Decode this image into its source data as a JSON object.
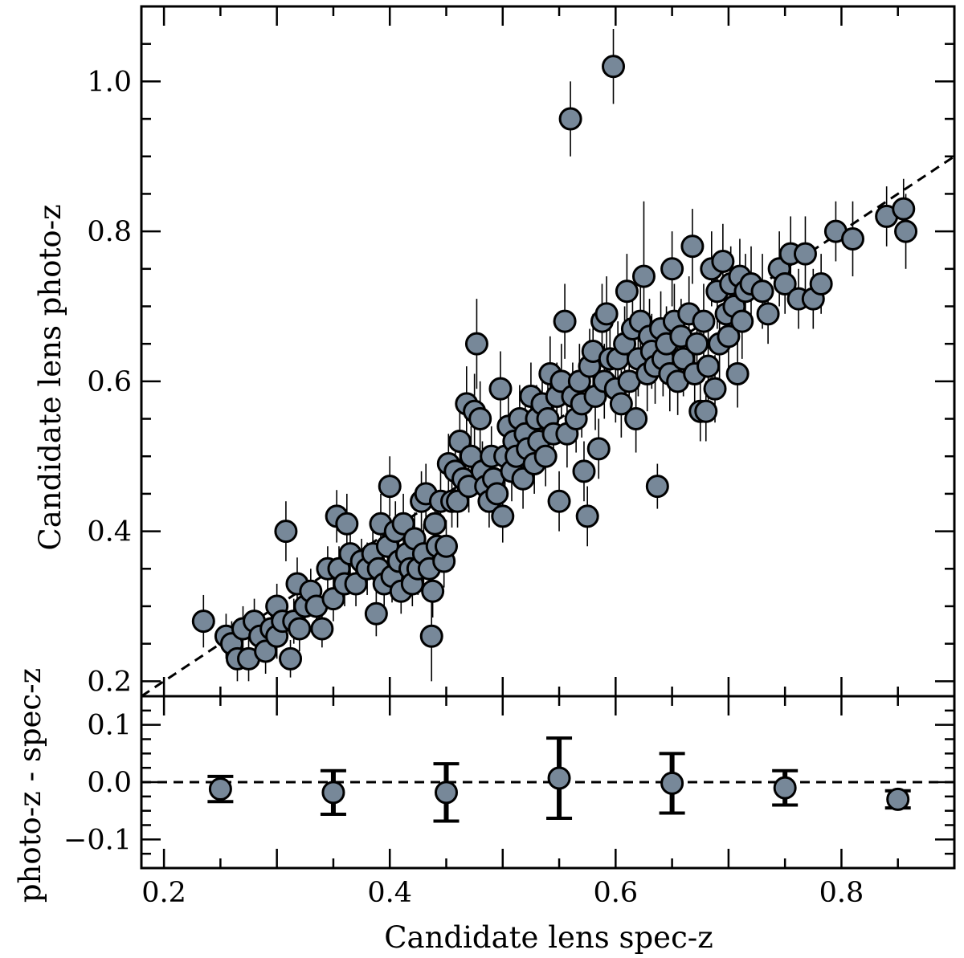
{
  "chart_data": [
    {
      "type": "scatter",
      "title": "",
      "xlabel": "",
      "ylabel": "Candidate lens photo-z",
      "xlim": [
        0.18,
        0.9
      ],
      "ylim": [
        0.18,
        1.1
      ],
      "xticks": [
        "0.2",
        "0.4",
        "0.6",
        "0.8"
      ],
      "yticks": [
        "0.2",
        "0.4",
        "0.6",
        "0.8",
        "1.0"
      ],
      "grid": false,
      "legend": "none",
      "marker_color": "#778899",
      "reference_line": {
        "style": "dashed",
        "x": [
          0.18,
          0.9
        ],
        "y": [
          0.18,
          0.9
        ]
      },
      "series": [
        {
          "points": [
            [
              0.235,
              0.28,
              0.035
            ],
            [
              0.255,
              0.26,
              0.03
            ],
            [
              0.26,
              0.25,
              0.03
            ],
            [
              0.265,
              0.23,
              0.03
            ],
            [
              0.27,
              0.27,
              0.03
            ],
            [
              0.275,
              0.23,
              0.03
            ],
            [
              0.28,
              0.28,
              0.03
            ],
            [
              0.285,
              0.26,
              0.025
            ],
            [
              0.29,
              0.24,
              0.03
            ],
            [
              0.295,
              0.27,
              0.03
            ],
            [
              0.3,
              0.3,
              0.03
            ],
            [
              0.3,
              0.26,
              0.03
            ],
            [
              0.305,
              0.28,
              0.03
            ],
            [
              0.308,
              0.4,
              0.04
            ],
            [
              0.312,
              0.23,
              0.025
            ],
            [
              0.315,
              0.28,
              0.03
            ],
            [
              0.318,
              0.33,
              0.035
            ],
            [
              0.32,
              0.27,
              0.03
            ],
            [
              0.325,
              0.3,
              0.035
            ],
            [
              0.33,
              0.32,
              0.03
            ],
            [
              0.335,
              0.3,
              0.03
            ],
            [
              0.34,
              0.27,
              0.025
            ],
            [
              0.345,
              0.35,
              0.03
            ],
            [
              0.35,
              0.31,
              0.03
            ],
            [
              0.353,
              0.42,
              0.035
            ],
            [
              0.355,
              0.35,
              0.03
            ],
            [
              0.36,
              0.33,
              0.03
            ],
            [
              0.362,
              0.41,
              0.04
            ],
            [
              0.365,
              0.37,
              0.035
            ],
            [
              0.37,
              0.33,
              0.03
            ],
            [
              0.375,
              0.36,
              0.03
            ],
            [
              0.38,
              0.35,
              0.035
            ],
            [
              0.385,
              0.37,
              0.035
            ],
            [
              0.388,
              0.29,
              0.03
            ],
            [
              0.39,
              0.35,
              0.03
            ],
            [
              0.392,
              0.41,
              0.04
            ],
            [
              0.395,
              0.33,
              0.035
            ],
            [
              0.398,
              0.38,
              0.04
            ],
            [
              0.4,
              0.46,
              0.04
            ],
            [
              0.402,
              0.34,
              0.035
            ],
            [
              0.405,
              0.4,
              0.04
            ],
            [
              0.408,
              0.36,
              0.035
            ],
            [
              0.41,
              0.32,
              0.03
            ],
            [
              0.412,
              0.41,
              0.04
            ],
            [
              0.415,
              0.37,
              0.035
            ],
            [
              0.418,
              0.35,
              0.03
            ],
            [
              0.42,
              0.33,
              0.03
            ],
            [
              0.422,
              0.39,
              0.035
            ],
            [
              0.425,
              0.35,
              0.035
            ],
            [
              0.428,
              0.44,
              0.04
            ],
            [
              0.43,
              0.37,
              0.04
            ],
            [
              0.432,
              0.45,
              0.04
            ],
            [
              0.435,
              0.35,
              0.04
            ],
            [
              0.437,
              0.26,
              0.06
            ],
            [
              0.438,
              0.32,
              0.035
            ],
            [
              0.44,
              0.41,
              0.04
            ],
            [
              0.442,
              0.38,
              0.035
            ],
            [
              0.445,
              0.44,
              0.04
            ],
            [
              0.448,
              0.36,
              0.035
            ],
            [
              0.45,
              0.38,
              0.035
            ],
            [
              0.452,
              0.49,
              0.04
            ],
            [
              0.455,
              0.44,
              0.035
            ],
            [
              0.458,
              0.48,
              0.04
            ],
            [
              0.46,
              0.44,
              0.035
            ],
            [
              0.462,
              0.52,
              0.04
            ],
            [
              0.465,
              0.47,
              0.04
            ],
            [
              0.468,
              0.57,
              0.05
            ],
            [
              0.47,
              0.46,
              0.035
            ],
            [
              0.472,
              0.5,
              0.04
            ],
            [
              0.475,
              0.56,
              0.05
            ],
            [
              0.477,
              0.65,
              0.06
            ],
            [
              0.48,
              0.55,
              0.05
            ],
            [
              0.482,
              0.48,
              0.04
            ],
            [
              0.485,
              0.46,
              0.035
            ],
            [
              0.488,
              0.44,
              0.035
            ],
            [
              0.49,
              0.5,
              0.04
            ],
            [
              0.492,
              0.47,
              0.04
            ],
            [
              0.495,
              0.45,
              0.035
            ],
            [
              0.498,
              0.59,
              0.05
            ],
            [
              0.5,
              0.42,
              0.035
            ],
            [
              0.502,
              0.5,
              0.04
            ],
            [
              0.505,
              0.54,
              0.045
            ],
            [
              0.508,
              0.48,
              0.04
            ],
            [
              0.51,
              0.52,
              0.04
            ],
            [
              0.512,
              0.5,
              0.04
            ],
            [
              0.515,
              0.55,
              0.045
            ],
            [
              0.518,
              0.47,
              0.04
            ],
            [
              0.52,
              0.53,
              0.04
            ],
            [
              0.522,
              0.51,
              0.04
            ],
            [
              0.525,
              0.58,
              0.045
            ],
            [
              0.528,
              0.49,
              0.04
            ],
            [
              0.53,
              0.55,
              0.045
            ],
            [
              0.532,
              0.52,
              0.04
            ],
            [
              0.535,
              0.57,
              0.045
            ],
            [
              0.538,
              0.5,
              0.04
            ],
            [
              0.54,
              0.55,
              0.045
            ],
            [
              0.542,
              0.61,
              0.05
            ],
            [
              0.545,
              0.53,
              0.04
            ],
            [
              0.548,
              0.58,
              0.045
            ],
            [
              0.55,
              0.44,
              0.04
            ],
            [
              0.552,
              0.6,
              0.05
            ],
            [
              0.555,
              0.68,
              0.05
            ],
            [
              0.557,
              0.53,
              0.045
            ],
            [
              0.56,
              0.95,
              0.05
            ],
            [
              0.562,
              0.58,
              0.045
            ],
            [
              0.565,
              0.55,
              0.045
            ],
            [
              0.568,
              0.6,
              0.05
            ],
            [
              0.57,
              0.57,
              0.045
            ],
            [
              0.572,
              0.48,
              0.04
            ],
            [
              0.575,
              0.42,
              0.04
            ],
            [
              0.577,
              0.62,
              0.05
            ],
            [
              0.58,
              0.64,
              0.05
            ],
            [
              0.582,
              0.58,
              0.045
            ],
            [
              0.585,
              0.51,
              0.04
            ],
            [
              0.588,
              0.68,
              0.05
            ],
            [
              0.59,
              0.6,
              0.05
            ],
            [
              0.592,
              0.69,
              0.05
            ],
            [
              0.595,
              0.63,
              0.05
            ],
            [
              0.598,
              1.02,
              0.05
            ],
            [
              0.6,
              0.59,
              0.045
            ],
            [
              0.602,
              0.63,
              0.05
            ],
            [
              0.605,
              0.57,
              0.045
            ],
            [
              0.608,
              0.65,
              0.05
            ],
            [
              0.61,
              0.72,
              0.05
            ],
            [
              0.612,
              0.6,
              0.045
            ],
            [
              0.615,
              0.67,
              0.05
            ],
            [
              0.618,
              0.55,
              0.045
            ],
            [
              0.62,
              0.63,
              0.05
            ],
            [
              0.622,
              0.68,
              0.05
            ],
            [
              0.625,
              0.74,
              0.1
            ],
            [
              0.628,
              0.61,
              0.05
            ],
            [
              0.63,
              0.66,
              0.05
            ],
            [
              0.632,
              0.64,
              0.05
            ],
            [
              0.635,
              0.62,
              0.05
            ],
            [
              0.637,
              0.46,
              0.03
            ],
            [
              0.64,
              0.67,
              0.05
            ],
            [
              0.642,
              0.63,
              0.05
            ],
            [
              0.645,
              0.65,
              0.05
            ],
            [
              0.648,
              0.61,
              0.05
            ],
            [
              0.65,
              0.75,
              0.05
            ],
            [
              0.652,
              0.68,
              0.05
            ],
            [
              0.655,
              0.6,
              0.045
            ],
            [
              0.658,
              0.66,
              0.05
            ],
            [
              0.66,
              0.63,
              0.05
            ],
            [
              0.665,
              0.69,
              0.05
            ],
            [
              0.668,
              0.78,
              0.05
            ],
            [
              0.67,
              0.61,
              0.045
            ],
            [
              0.672,
              0.65,
              0.05
            ],
            [
              0.675,
              0.56,
              0.04
            ],
            [
              0.678,
              0.68,
              0.05
            ],
            [
              0.68,
              0.56,
              0.04
            ],
            [
              0.682,
              0.62,
              0.05
            ],
            [
              0.685,
              0.75,
              0.05
            ],
            [
              0.688,
              0.59,
              0.045
            ],
            [
              0.69,
              0.72,
              0.05
            ],
            [
              0.692,
              0.65,
              0.05
            ],
            [
              0.695,
              0.76,
              0.05
            ],
            [
              0.698,
              0.69,
              0.05
            ],
            [
              0.7,
              0.66,
              0.05
            ],
            [
              0.702,
              0.73,
              0.05
            ],
            [
              0.705,
              0.7,
              0.05
            ],
            [
              0.708,
              0.61,
              0.045
            ],
            [
              0.71,
              0.74,
              0.05
            ],
            [
              0.712,
              0.68,
              0.05
            ],
            [
              0.715,
              0.72,
              0.05
            ],
            [
              0.72,
              0.73,
              0.05
            ],
            [
              0.73,
              0.72,
              0.05
            ],
            [
              0.735,
              0.69,
              0.04
            ],
            [
              0.745,
              0.75,
              0.05
            ],
            [
              0.75,
              0.73,
              0.04
            ],
            [
              0.755,
              0.77,
              0.05
            ],
            [
              0.762,
              0.71,
              0.04
            ],
            [
              0.768,
              0.77,
              0.05
            ],
            [
              0.775,
              0.71,
              0.04
            ],
            [
              0.782,
              0.73,
              0.04
            ],
            [
              0.795,
              0.8,
              0.04
            ],
            [
              0.81,
              0.79,
              0.05
            ],
            [
              0.84,
              0.82,
              0.04
            ],
            [
              0.855,
              0.83,
              0.04
            ],
            [
              0.857,
              0.8,
              0.05
            ]
          ]
        }
      ]
    },
    {
      "type": "scatter",
      "title": "",
      "xlabel": "Candidate lens spec-z",
      "ylabel": "photo-z - spec-z",
      "xlim": [
        0.18,
        0.9
      ],
      "ylim": [
        -0.15,
        0.15
      ],
      "xticks": [
        "0.2",
        "0.4",
        "0.6",
        "0.8"
      ],
      "yticks": [
        "0.1",
        "0.0",
        "−0.1"
      ],
      "grid": false,
      "legend": "none",
      "marker_color": "#778899",
      "reference_line": {
        "style": "dashed",
        "y": 0.0
      },
      "series": [
        {
          "points": [
            [
              0.25,
              -0.012,
              0.022
            ],
            [
              0.35,
              -0.018,
              0.038
            ],
            [
              0.45,
              -0.018,
              0.05
            ],
            [
              0.55,
              0.007,
              0.07
            ],
            [
              0.65,
              -0.002,
              0.052
            ],
            [
              0.75,
              -0.01,
              0.03
            ],
            [
              0.85,
              -0.03,
              0.015
            ]
          ]
        }
      ]
    }
  ]
}
